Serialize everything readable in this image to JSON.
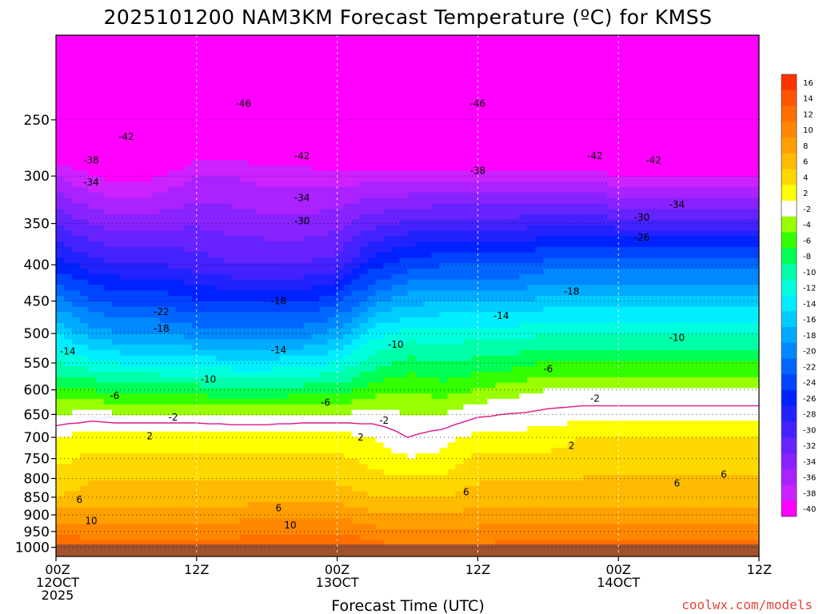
{
  "title": "2025101200 NAM3KM Forecast Temperature (ºC) for KMSS",
  "credit": "coolwx.com/models",
  "chart_data": {
    "type": "heatmap",
    "title": "2025101200 NAM3KM Forecast Temperature (ºC) for KMSS",
    "xlabel": "Forecast Time (UTC)",
    "ylabel": "",
    "x_hours": [
      0,
      3,
      6,
      9,
      12,
      15,
      18,
      21,
      24,
      27,
      30,
      33,
      36,
      39,
      42,
      45,
      48,
      51,
      54,
      57,
      60
    ],
    "xlim": [
      0,
      60
    ],
    "ylim": [
      1030,
      190
    ],
    "y_scale": "log",
    "x_ticks": [
      {
        "hour": 0,
        "lines": [
          "00Z",
          "12OCT",
          "2025"
        ]
      },
      {
        "hour": 12,
        "lines": [
          "12Z"
        ]
      },
      {
        "hour": 24,
        "lines": [
          "00Z",
          "13OCT"
        ]
      },
      {
        "hour": 36,
        "lines": [
          "12Z"
        ]
      },
      {
        "hour": 48,
        "lines": [
          "00Z",
          "14OCT"
        ]
      },
      {
        "hour": 60,
        "lines": [
          "12Z"
        ]
      }
    ],
    "y_ticks": [
      250,
      300,
      350,
      400,
      450,
      500,
      550,
      600,
      650,
      700,
      750,
      800,
      850,
      900,
      950,
      1000
    ],
    "colorbar": {
      "levels": [
        16,
        14,
        12,
        10,
        8,
        6,
        4,
        2,
        -2,
        -4,
        -6,
        -8,
        -10,
        -12,
        -14,
        -16,
        -18,
        -20,
        -22,
        -24,
        -26,
        -28,
        -30,
        -32,
        -34,
        -36,
        -38,
        -40
      ],
      "colors": [
        "#ff3300",
        "#ff5500",
        "#ff6f00",
        "#ff8800",
        "#ff9f00",
        "#ffbb00",
        "#ffd800",
        "#ffff00",
        "#ffffff",
        "#99ff00",
        "#33ff00",
        "#00ff55",
        "#00ffaa",
        "#00ffdd",
        "#00eeff",
        "#00ccff",
        "#00aaff",
        "#0088ff",
        "#0066ff",
        "#0044ff",
        "#0022ff",
        "#2222ff",
        "#4422ff",
        "#6622ff",
        "#8822ff",
        "#aa22ff",
        "#cc22ff",
        "#ff00ff"
      ]
    },
    "temperature_profiles": [
      {
        "hour": 0,
        "t1000": 14,
        "t850": 6,
        "t700": 2,
        "t600": -6,
        "t500": -14,
        "t400": -25,
        "t300": -36,
        "t250": -44,
        "t200": -50
      },
      {
        "hour": 3,
        "t1000": 13,
        "t850": 7,
        "t700": 3,
        "t600": -6,
        "t500": -17,
        "t400": -27,
        "t300": -38,
        "t250": -45,
        "t200": -50
      },
      {
        "hour": 6,
        "t1000": 13,
        "t850": 7,
        "t700": 3,
        "t600": -7,
        "t500": -18,
        "t400": -28,
        "t300": -39,
        "t250": -45,
        "t200": -50
      },
      {
        "hour": 9,
        "t1000": 13,
        "t850": 7,
        "t700": 3,
        "t600": -7,
        "t500": -18,
        "t400": -28,
        "t300": -38,
        "t250": -45,
        "t200": -50
      },
      {
        "hour": 12,
        "t1000": 13,
        "t850": 7,
        "t700": 3,
        "t600": -7,
        "t500": -19,
        "t400": -29,
        "t300": -36,
        "t250": -44,
        "t200": -50
      },
      {
        "hour": 15,
        "t1000": 13,
        "t850": 7,
        "t700": 3,
        "t600": -8,
        "t500": -19,
        "t400": -30,
        "t300": -36,
        "t250": -43,
        "t200": -50
      },
      {
        "hour": 18,
        "t1000": 14,
        "t850": 7,
        "t700": 3,
        "t600": -8,
        "t500": -19,
        "t400": -30,
        "t300": -37,
        "t250": -43,
        "t200": -50
      },
      {
        "hour": 21,
        "t1000": 14,
        "t850": 7,
        "t700": 3,
        "t600": -7,
        "t500": -19,
        "t400": -30,
        "t300": -37,
        "t250": -44,
        "t200": -50
      },
      {
        "hour": 24,
        "t1000": 14,
        "t850": 7,
        "t700": 3,
        "t600": -7,
        "t500": -17,
        "t400": -29,
        "t300": -37,
        "t250": -45,
        "t200": -50
      },
      {
        "hour": 27,
        "t1000": 13,
        "t850": 6,
        "t700": 2,
        "t600": -5,
        "t500": -13,
        "t400": -25,
        "t300": -37,
        "t250": -45,
        "t200": -50
      },
      {
        "hour": 30,
        "t1000": 12,
        "t850": 6,
        "t700": 0,
        "t600": -4,
        "t500": -11,
        "t400": -23,
        "t300": -37,
        "t250": -45,
        "t200": -50
      },
      {
        "hour": 33,
        "t1000": 12,
        "t850": 6,
        "t700": 1,
        "t600": -5,
        "t500": -11,
        "t400": -22,
        "t300": -37,
        "t250": -45,
        "t200": -50
      },
      {
        "hour": 36,
        "t1000": 12,
        "t850": 7,
        "t700": 3,
        "t600": -4,
        "t500": -11,
        "t400": -22,
        "t300": -37,
        "t250": -46,
        "t200": -50
      },
      {
        "hour": 39,
        "t1000": 13,
        "t850": 7,
        "t700": 3,
        "t600": -3,
        "t500": -11,
        "t400": -22,
        "t300": -37,
        "t250": -46,
        "t200": -50
      },
      {
        "hour": 42,
        "t1000": 13,
        "t850": 7,
        "t700": 3,
        "t600": -2,
        "t500": -10,
        "t400": -21,
        "t300": -37,
        "t250": -46,
        "t200": -50
      },
      {
        "hour": 45,
        "t1000": 13,
        "t850": 7,
        "t700": 4,
        "t600": -2,
        "t500": -10,
        "t400": -21,
        "t300": -37,
        "t250": -46,
        "t200": -50
      },
      {
        "hour": 48,
        "t1000": 13,
        "t850": 7,
        "t700": 4,
        "t600": -2,
        "t500": -10,
        "t400": -21,
        "t300": -38,
        "t250": -46,
        "t200": -50
      },
      {
        "hour": 51,
        "t1000": 13,
        "t850": 7,
        "t700": 4,
        "t600": -2,
        "t500": -10,
        "t400": -21,
        "t300": -38,
        "t250": -46,
        "t200": -50
      },
      {
        "hour": 54,
        "t1000": 13,
        "t850": 7,
        "t700": 4,
        "t600": -2,
        "t500": -10,
        "t400": -21,
        "t300": -38,
        "t250": -46,
        "t200": -50
      },
      {
        "hour": 57,
        "t1000": 13,
        "t850": 7,
        "t700": 4,
        "t600": -2,
        "t500": -10,
        "t400": -21,
        "t300": -38,
        "t250": -46,
        "t200": -50
      },
      {
        "hour": 60,
        "t1000": 13,
        "t850": 7,
        "t700": 4,
        "t600": -2,
        "t500": -10,
        "t400": -21,
        "t300": -38,
        "t250": -46,
        "t200": -50
      }
    ],
    "contour_labels": [
      {
        "text": "-46",
        "hour": 16,
        "p": 237
      },
      {
        "text": "-46",
        "hour": 36,
        "p": 237
      },
      {
        "text": "-42",
        "hour": 6,
        "p": 264
      },
      {
        "text": "-42",
        "hour": 21,
        "p": 281
      },
      {
        "text": "-42",
        "hour": 46,
        "p": 281
      },
      {
        "text": "-42",
        "hour": 51,
        "p": 285
      },
      {
        "text": "-38",
        "hour": 3,
        "p": 285
      },
      {
        "text": "-38",
        "hour": 36,
        "p": 295
      },
      {
        "text": "-34",
        "hour": 3,
        "p": 306
      },
      {
        "text": "-34",
        "hour": 21,
        "p": 322
      },
      {
        "text": "-34",
        "hour": 53,
        "p": 329
      },
      {
        "text": "-30",
        "hour": 21,
        "p": 347
      },
      {
        "text": "-30",
        "hour": 50,
        "p": 343
      },
      {
        "text": "-26",
        "hour": 50,
        "p": 366
      },
      {
        "text": "-22",
        "hour": 9,
        "p": 466
      },
      {
        "text": "-18",
        "hour": 9,
        "p": 492
      },
      {
        "text": "-18",
        "hour": 19,
        "p": 450
      },
      {
        "text": "-18",
        "hour": 44,
        "p": 436
      },
      {
        "text": "-14",
        "hour": 1,
        "p": 530
      },
      {
        "text": "-14",
        "hour": 19,
        "p": 528
      },
      {
        "text": "-14",
        "hour": 38,
        "p": 472
      },
      {
        "text": "-10",
        "hour": 13,
        "p": 580
      },
      {
        "text": "-10",
        "hour": 29,
        "p": 518
      },
      {
        "text": "-10",
        "hour": 53,
        "p": 507
      },
      {
        "text": "-6",
        "hour": 5,
        "p": 612
      },
      {
        "text": "-6",
        "hour": 23,
        "p": 625
      },
      {
        "text": "-6",
        "hour": 42,
        "p": 561
      },
      {
        "text": "-2",
        "hour": 10,
        "p": 656
      },
      {
        "text": "-2",
        "hour": 28,
        "p": 663
      },
      {
        "text": "-2",
        "hour": 46,
        "p": 617
      },
      {
        "text": "2",
        "hour": 8,
        "p": 697
      },
      {
        "text": "2",
        "hour": 26,
        "p": 700
      },
      {
        "text": "2",
        "hour": 44,
        "p": 719
      },
      {
        "text": "6",
        "hour": 2,
        "p": 857
      },
      {
        "text": "6",
        "hour": 19,
        "p": 880
      },
      {
        "text": "6",
        "hour": 35,
        "p": 836
      },
      {
        "text": "6",
        "hour": 53,
        "p": 812
      },
      {
        "text": "6",
        "hour": 57,
        "p": 790
      },
      {
        "text": "10",
        "hour": 3,
        "p": 918
      },
      {
        "text": "10",
        "hour": 20,
        "p": 931
      }
    ]
  }
}
